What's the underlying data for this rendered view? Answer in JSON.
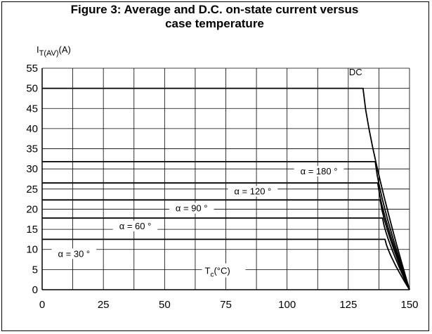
{
  "chart_data": {
    "type": "line",
    "title_line1": "Figure 3: Average and D.C. on-state current versus",
    "title_line2": "case temperature",
    "ylabel_main": "I",
    "ylabel_sub": "T(AV)",
    "ylabel_unit": "(A)",
    "xlabel_main": "T",
    "xlabel_sub": "c",
    "xlabel_unit": "(°C)",
    "xlim": [
      0,
      150
    ],
    "ylim": [
      0,
      55
    ],
    "xticks": [
      "0",
      "25",
      "50",
      "75",
      "100",
      "125",
      "150"
    ],
    "yticks": [
      "0",
      "5",
      "10",
      "15",
      "20",
      "25",
      "30",
      "35",
      "40",
      "45",
      "50",
      "55"
    ],
    "grid": true,
    "series": [
      {
        "name": "DC",
        "flat": 50,
        "knee": 131,
        "end": 150
      },
      {
        "name": "α = 180 °",
        "flat": 31.8,
        "knee": 136,
        "end": 150
      },
      {
        "name": "α = 120 °",
        "flat": 26.5,
        "knee": 137,
        "end": 150
      },
      {
        "name": "α = 90 °",
        "flat": 22.3,
        "knee": 138,
        "end": 150
      },
      {
        "name": "α = 60 °",
        "flat": 17.8,
        "knee": 139,
        "end": 150
      },
      {
        "name": "α = 30 °",
        "flat": 12.5,
        "knee": 140,
        "end": 150
      }
    ]
  }
}
